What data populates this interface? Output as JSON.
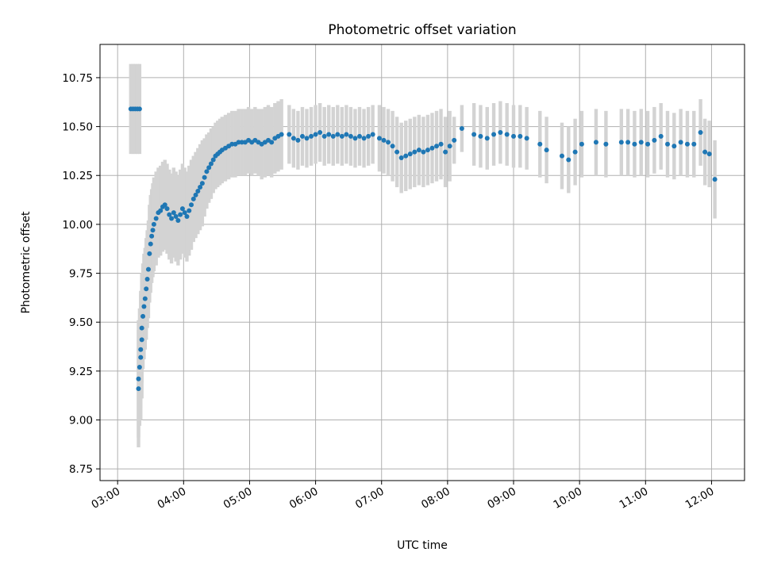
{
  "chart_data": {
    "type": "scatter",
    "title": "Photometric offset variation",
    "xlabel": "UTC time",
    "ylabel": "Photometric offset",
    "xlim": [
      "02:44",
      "12:30"
    ],
    "ylim": [
      8.69,
      10.92
    ],
    "grid": true,
    "x_ticks": [
      "03:00",
      "04:00",
      "05:00",
      "06:00",
      "07:00",
      "08:00",
      "09:00",
      "10:00",
      "11:00",
      "12:00"
    ],
    "y_ticks": [
      8.75,
      9.0,
      9.25,
      9.5,
      9.75,
      10.0,
      10.25,
      10.5,
      10.75
    ],
    "y_tick_labels": [
      "8.75",
      "9.00",
      "9.25",
      "9.50",
      "9.75",
      "10.00",
      "10.25",
      "10.50",
      "10.75"
    ],
    "colors": {
      "points": "#1f77b4",
      "errorbars": "#d3d3d3",
      "grid": "#b0b0b0"
    },
    "series": [
      {
        "points": [
          [
            "03:12",
            10.59,
            0.23
          ],
          [
            "03:14",
            10.59,
            0.23
          ],
          [
            "03:16",
            10.59,
            0.23
          ],
          [
            "03:18",
            10.59,
            0.23
          ],
          [
            "03:20",
            10.59,
            0.23
          ],
          [
            "03:19",
            9.16,
            0.3
          ],
          [
            "03:19",
            9.21,
            0.3
          ],
          [
            "03:20",
            9.27,
            0.3
          ],
          [
            "03:21",
            9.32,
            0.32
          ],
          [
            "03:21",
            9.36,
            0.3
          ],
          [
            "03:22",
            9.41,
            0.3
          ],
          [
            "03:22",
            9.47,
            0.28
          ],
          [
            "03:23",
            9.53,
            0.27
          ],
          [
            "03:24",
            9.58,
            0.27
          ],
          [
            "03:25",
            9.62,
            0.26
          ],
          [
            "03:26",
            9.67,
            0.26
          ],
          [
            "03:27",
            9.72,
            0.25
          ],
          [
            "03:28",
            9.77,
            0.25
          ],
          [
            "03:29",
            9.85,
            0.25
          ],
          [
            "03:30",
            9.9,
            0.25
          ],
          [
            "03:31",
            9.94,
            0.24
          ],
          [
            "03:32",
            9.97,
            0.24
          ],
          [
            "03:33",
            10.0,
            0.24
          ],
          [
            "03:35",
            10.03,
            0.24
          ],
          [
            "03:37",
            10.06,
            0.23
          ],
          [
            "03:39",
            10.07,
            0.23
          ],
          [
            "03:41",
            10.09,
            0.23
          ],
          [
            "03:43",
            10.1,
            0.23
          ],
          [
            "03:45",
            10.08,
            0.23
          ],
          [
            "03:47",
            10.05,
            0.23
          ],
          [
            "03:49",
            10.03,
            0.23
          ],
          [
            "03:51",
            10.06,
            0.23
          ],
          [
            "03:53",
            10.04,
            0.23
          ],
          [
            "03:55",
            10.02,
            0.23
          ],
          [
            "03:57",
            10.05,
            0.23
          ],
          [
            "03:59",
            10.08,
            0.23
          ],
          [
            "04:01",
            10.06,
            0.23
          ],
          [
            "04:03",
            10.04,
            0.23
          ],
          [
            "04:05",
            10.07,
            0.23
          ],
          [
            "04:07",
            10.1,
            0.23
          ],
          [
            "04:09",
            10.13,
            0.22
          ],
          [
            "04:11",
            10.15,
            0.22
          ],
          [
            "04:13",
            10.17,
            0.22
          ],
          [
            "04:15",
            10.19,
            0.22
          ],
          [
            "04:17",
            10.21,
            0.22
          ],
          [
            "04:19",
            10.24,
            0.2
          ],
          [
            "04:21",
            10.27,
            0.19
          ],
          [
            "04:23",
            10.29,
            0.18
          ],
          [
            "04:25",
            10.31,
            0.18
          ],
          [
            "04:27",
            10.33,
            0.17
          ],
          [
            "04:29",
            10.35,
            0.17
          ],
          [
            "04:31",
            10.36,
            0.17
          ],
          [
            "04:33",
            10.37,
            0.17
          ],
          [
            "04:35",
            10.38,
            0.17
          ],
          [
            "04:38",
            10.39,
            0.17
          ],
          [
            "04:41",
            10.4,
            0.17
          ],
          [
            "04:44",
            10.41,
            0.17
          ],
          [
            "04:47",
            10.41,
            0.17
          ],
          [
            "04:50",
            10.42,
            0.17
          ],
          [
            "04:53",
            10.42,
            0.17
          ],
          [
            "04:56",
            10.42,
            0.17
          ],
          [
            "04:59",
            10.43,
            0.17
          ],
          [
            "05:02",
            10.42,
            0.17
          ],
          [
            "05:05",
            10.43,
            0.17
          ],
          [
            "05:08",
            10.42,
            0.17
          ],
          [
            "05:11",
            10.41,
            0.18
          ],
          [
            "05:14",
            10.42,
            0.18
          ],
          [
            "05:17",
            10.43,
            0.18
          ],
          [
            "05:20",
            10.42,
            0.18
          ],
          [
            "05:23",
            10.44,
            0.18
          ],
          [
            "05:26",
            10.45,
            0.18
          ],
          [
            "05:29",
            10.46,
            0.18
          ],
          [
            "05:36",
            10.46,
            0.15
          ],
          [
            "05:40",
            10.44,
            0.15
          ],
          [
            "05:44",
            10.43,
            0.15
          ],
          [
            "05:48",
            10.45,
            0.15
          ],
          [
            "05:52",
            10.44,
            0.15
          ],
          [
            "05:56",
            10.45,
            0.15
          ],
          [
            "06:00",
            10.46,
            0.15
          ],
          [
            "06:04",
            10.47,
            0.15
          ],
          [
            "06:08",
            10.45,
            0.15
          ],
          [
            "06:12",
            10.46,
            0.15
          ],
          [
            "06:16",
            10.45,
            0.15
          ],
          [
            "06:20",
            10.46,
            0.15
          ],
          [
            "06:24",
            10.45,
            0.15
          ],
          [
            "06:28",
            10.46,
            0.15
          ],
          [
            "06:32",
            10.45,
            0.15
          ],
          [
            "06:36",
            10.44,
            0.15
          ],
          [
            "06:40",
            10.45,
            0.15
          ],
          [
            "06:44",
            10.44,
            0.15
          ],
          [
            "06:48",
            10.45,
            0.15
          ],
          [
            "06:52",
            10.46,
            0.15
          ],
          [
            "06:58",
            10.44,
            0.17
          ],
          [
            "07:02",
            10.43,
            0.17
          ],
          [
            "07:06",
            10.42,
            0.17
          ],
          [
            "07:10",
            10.4,
            0.18
          ],
          [
            "07:14",
            10.37,
            0.18
          ],
          [
            "07:18",
            10.34,
            0.18
          ],
          [
            "07:22",
            10.35,
            0.18
          ],
          [
            "07:26",
            10.36,
            0.18
          ],
          [
            "07:30",
            10.37,
            0.18
          ],
          [
            "07:34",
            10.38,
            0.18
          ],
          [
            "07:38",
            10.37,
            0.18
          ],
          [
            "07:42",
            10.38,
            0.18
          ],
          [
            "07:46",
            10.39,
            0.18
          ],
          [
            "07:50",
            10.4,
            0.18
          ],
          [
            "07:54",
            10.41,
            0.18
          ],
          [
            "07:58",
            10.37,
            0.18
          ],
          [
            "08:02",
            10.4,
            0.18
          ],
          [
            "08:06",
            10.43,
            0.12
          ],
          [
            "08:13",
            10.49,
            0.12
          ],
          [
            "08:24",
            10.46,
            0.16
          ],
          [
            "08:30",
            10.45,
            0.16
          ],
          [
            "08:36",
            10.44,
            0.16
          ],
          [
            "08:42",
            10.46,
            0.16
          ],
          [
            "08:48",
            10.47,
            0.16
          ],
          [
            "08:54",
            10.46,
            0.16
          ],
          [
            "09:00",
            10.45,
            0.16
          ],
          [
            "09:06",
            10.45,
            0.16
          ],
          [
            "09:12",
            10.44,
            0.16
          ],
          [
            "09:24",
            10.41,
            0.17
          ],
          [
            "09:30",
            10.38,
            0.17
          ],
          [
            "09:44",
            10.35,
            0.17
          ],
          [
            "09:50",
            10.33,
            0.17
          ],
          [
            "09:56",
            10.37,
            0.17
          ],
          [
            "10:02",
            10.41,
            0.17
          ],
          [
            "10:15",
            10.42,
            0.17
          ],
          [
            "10:24",
            10.41,
            0.17
          ],
          [
            "10:38",
            10.42,
            0.17
          ],
          [
            "10:44",
            10.42,
            0.17
          ],
          [
            "10:50",
            10.41,
            0.17
          ],
          [
            "10:56",
            10.42,
            0.17
          ],
          [
            "11:02",
            10.41,
            0.17
          ],
          [
            "11:08",
            10.43,
            0.17
          ],
          [
            "11:14",
            10.45,
            0.17
          ],
          [
            "11:20",
            10.41,
            0.17
          ],
          [
            "11:26",
            10.4,
            0.17
          ],
          [
            "11:32",
            10.42,
            0.17
          ],
          [
            "11:38",
            10.41,
            0.17
          ],
          [
            "11:44",
            10.41,
            0.17
          ],
          [
            "11:50",
            10.47,
            0.17
          ],
          [
            "11:54",
            10.37,
            0.17
          ],
          [
            "11:58",
            10.36,
            0.17
          ],
          [
            "12:03",
            10.23,
            0.2
          ]
        ]
      }
    ]
  }
}
